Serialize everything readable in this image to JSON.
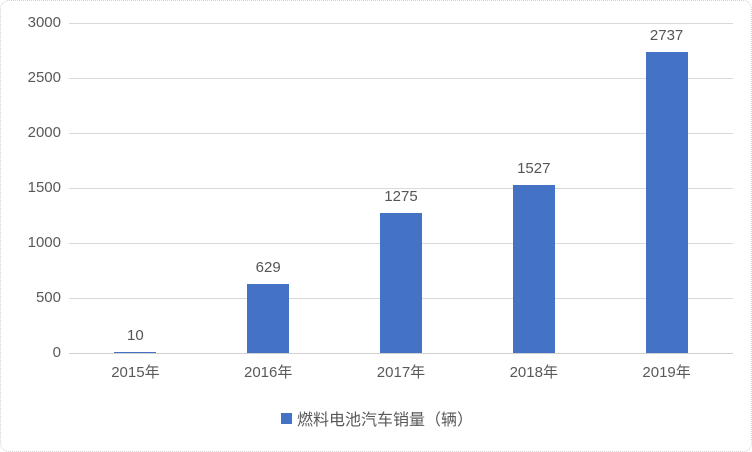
{
  "chart_data": {
    "type": "bar",
    "title": "",
    "xlabel": "",
    "ylabel": "",
    "categories": [
      "2015年",
      "2016年",
      "2017年",
      "2018年",
      "2019年"
    ],
    "values": [
      10,
      629,
      1275,
      1527,
      2737
    ],
    "data_labels": [
      "10",
      "629",
      "1275",
      "1527",
      "2737"
    ],
    "series": [
      {
        "name": "燃料电池汽车销量（辆）",
        "values": [
          10,
          629,
          1275,
          1527,
          2737
        ]
      }
    ],
    "ylim": [
      0,
      3000
    ],
    "yticks": [
      0,
      500,
      1000,
      1500,
      2000,
      2500,
      3000
    ],
    "grid": true,
    "legend_position": "bottom"
  },
  "legend": {
    "marker": "legend-square-icon",
    "label": "燃料电池汽车销量（辆）"
  },
  "colors": {
    "bar": "#4472C4",
    "gridline": "#D9D9D9",
    "text": "#595959",
    "frame_border": "#D2D2D2",
    "background": "#FFFFFF"
  }
}
